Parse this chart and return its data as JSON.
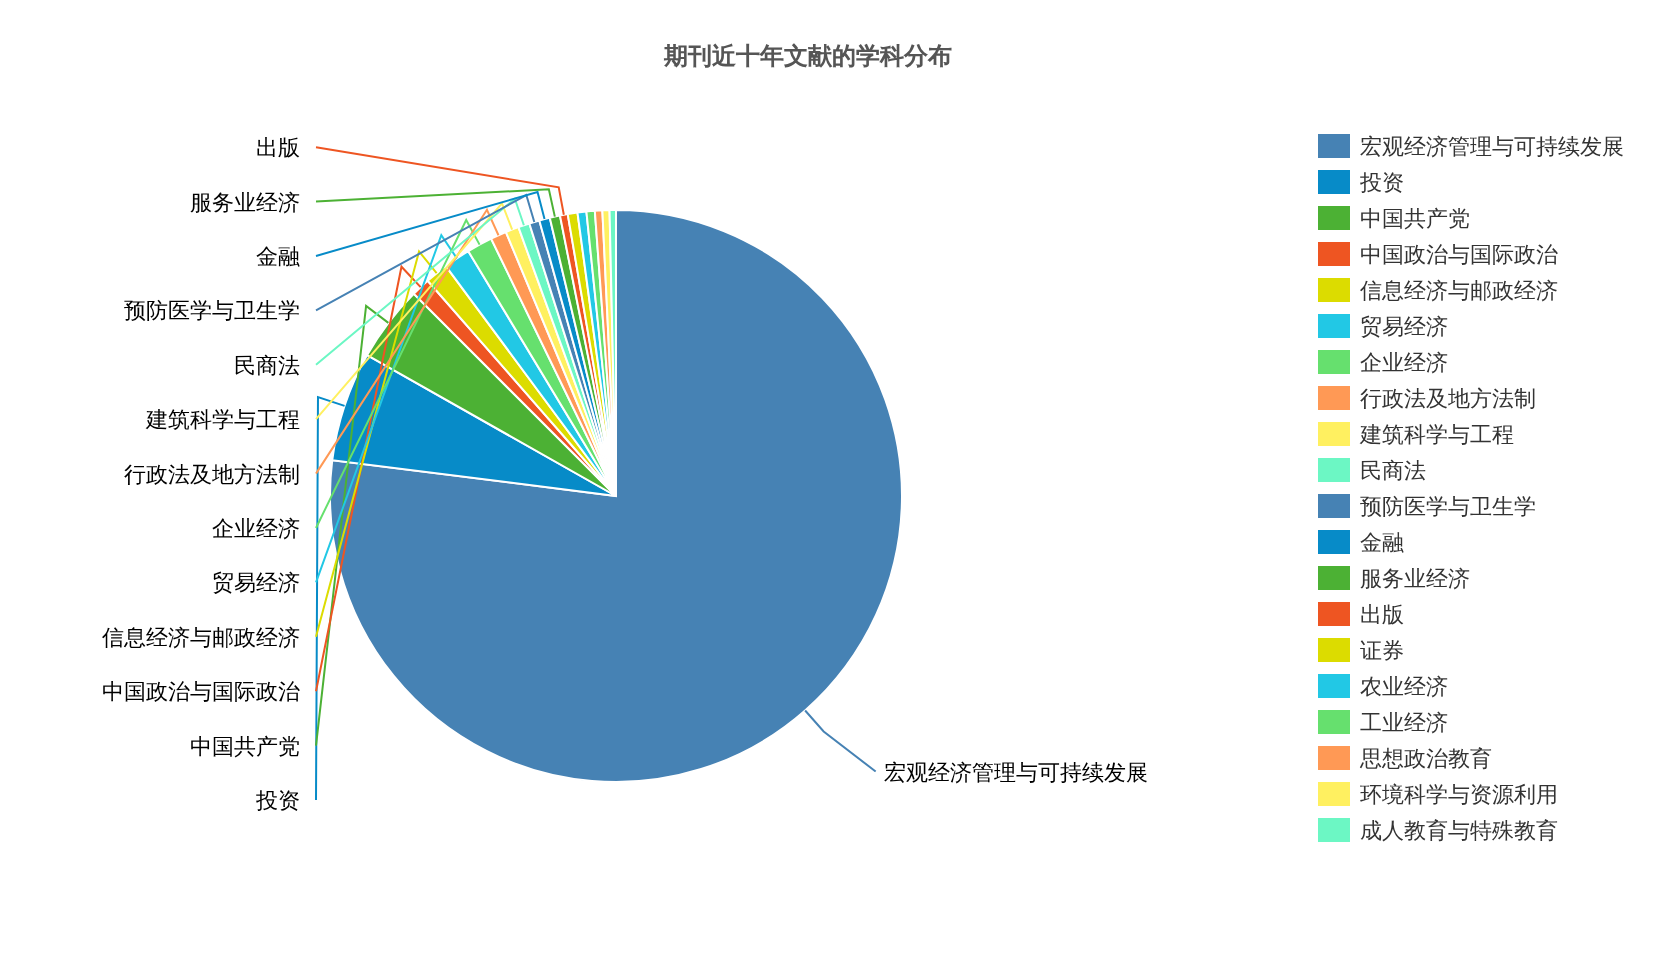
{
  "chart_data": {
    "type": "pie",
    "title": "期刊近十年文献的学科分布",
    "categories": [
      "宏观经济管理与可持续发展",
      "投资",
      "中国共产党",
      "中国政治与国际政治",
      "信息经济与邮政经济",
      "贸易经济",
      "企业经济",
      "行政法及地方法制",
      "建筑科学与工程",
      "民商法",
      "预防医学与卫生学",
      "金融",
      "服务业经济",
      "出版",
      "证券",
      "农业经济",
      "工业经济",
      "思想政治教育",
      "环境科学与资源利用",
      "成人教育与特殊教育"
    ],
    "values": [
      77.0,
      6.2,
      4.3,
      1.06,
      1.3,
      1.5,
      1.45,
      0.9,
      0.75,
      0.64,
      0.58,
      0.6,
      0.58,
      0.44,
      0.55,
      0.5,
      0.47,
      0.42,
      0.4,
      0.36
    ],
    "colors": [
      "#4682b4",
      "#078bc8",
      "#4cb134",
      "#ee5522",
      "#dcdc00",
      "#22c8e5",
      "#66e06e",
      "#ff9955",
      "#fff060",
      "#6cf7c4",
      "#4682b4",
      "#078bc8",
      "#4cb134",
      "#ee5522",
      "#dcdc00",
      "#22c8e5",
      "#66e06e",
      "#ff9955",
      "#fff060",
      "#6cf7c4"
    ],
    "legend": "right"
  }
}
